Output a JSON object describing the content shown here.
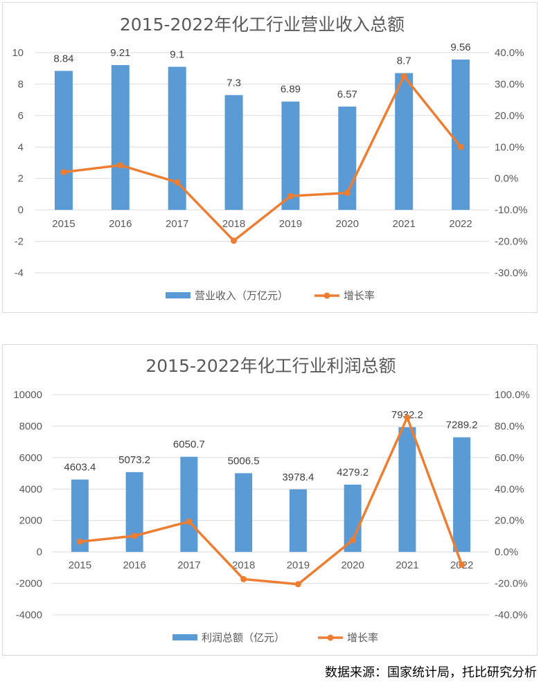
{
  "chart_data": [
    {
      "type": "bar+line",
      "title": "2015-2022年化工行业营业收入总额",
      "categories": [
        "2015",
        "2016",
        "2017",
        "2018",
        "2019",
        "2020",
        "2021",
        "2022"
      ],
      "series": [
        {
          "name": "营业收入（万亿元）",
          "type": "bar",
          "axis": "left",
          "color": "#5b9bd5",
          "values": [
            8.84,
            9.21,
            9.1,
            7.3,
            6.89,
            6.57,
            8.7,
            9.56
          ],
          "labels": [
            "8.84",
            "9.21",
            "9.1",
            "7.3",
            "6.89",
            "6.57",
            "8.7",
            "9.56"
          ]
        },
        {
          "name": "增长率",
          "type": "line",
          "axis": "right",
          "color": "#ed7d31",
          "values": [
            2.0,
            4.2,
            -1.2,
            -19.8,
            -5.6,
            -4.6,
            32.5,
            10.0
          ]
        }
      ],
      "left_axis": {
        "min": -4,
        "max": 10,
        "step": 2,
        "ticks": [
          "-4",
          "-2",
          "0",
          "2",
          "4",
          "6",
          "8",
          "10"
        ]
      },
      "right_axis": {
        "min": -30,
        "max": 40,
        "step": 10,
        "ticks": [
          "-30.0%",
          "-20.0%",
          "-10.0%",
          "0.0%",
          "10.0%",
          "20.0%",
          "30.0%",
          "40.0%"
        ]
      },
      "grid": true,
      "legend": "bottom"
    },
    {
      "type": "bar+line",
      "title": "2015-2022年化工行业利润总额",
      "categories": [
        "2015",
        "2016",
        "2017",
        "2018",
        "2019",
        "2020",
        "2021",
        "2022"
      ],
      "series": [
        {
          "name": "利润总额（亿元）",
          "type": "bar",
          "axis": "left",
          "color": "#5b9bd5",
          "values": [
            4603.4,
            5073.2,
            6050.7,
            5006.5,
            3978.4,
            4279.2,
            7932.2,
            7289.2
          ],
          "labels": [
            "4603.4",
            "5073.2",
            "6050.7",
            "5006.5",
            "3978.4",
            "4279.2",
            "7932.2",
            "7289.2"
          ]
        },
        {
          "name": "增长率",
          "type": "line",
          "axis": "right",
          "color": "#ed7d31",
          "values": [
            6.5,
            10.2,
            19.3,
            -17.3,
            -20.5,
            7.5,
            85.5,
            -8.1
          ]
        }
      ],
      "left_axis": {
        "min": -4000,
        "max": 10000,
        "step": 2000,
        "ticks": [
          "-4000",
          "-2000",
          "0",
          "2000",
          "4000",
          "6000",
          "8000",
          "10000"
        ]
      },
      "right_axis": {
        "min": -40,
        "max": 100,
        "step": 20,
        "ticks": [
          "-40.0%",
          "-20.0%",
          "0.0%",
          "20.0%",
          "40.0%",
          "60.0%",
          "80.0%",
          "100.0%"
        ]
      },
      "grid": true,
      "legend": "bottom"
    }
  ],
  "footer": {
    "source": "数据来源：国家统计局，托比研究分析"
  }
}
